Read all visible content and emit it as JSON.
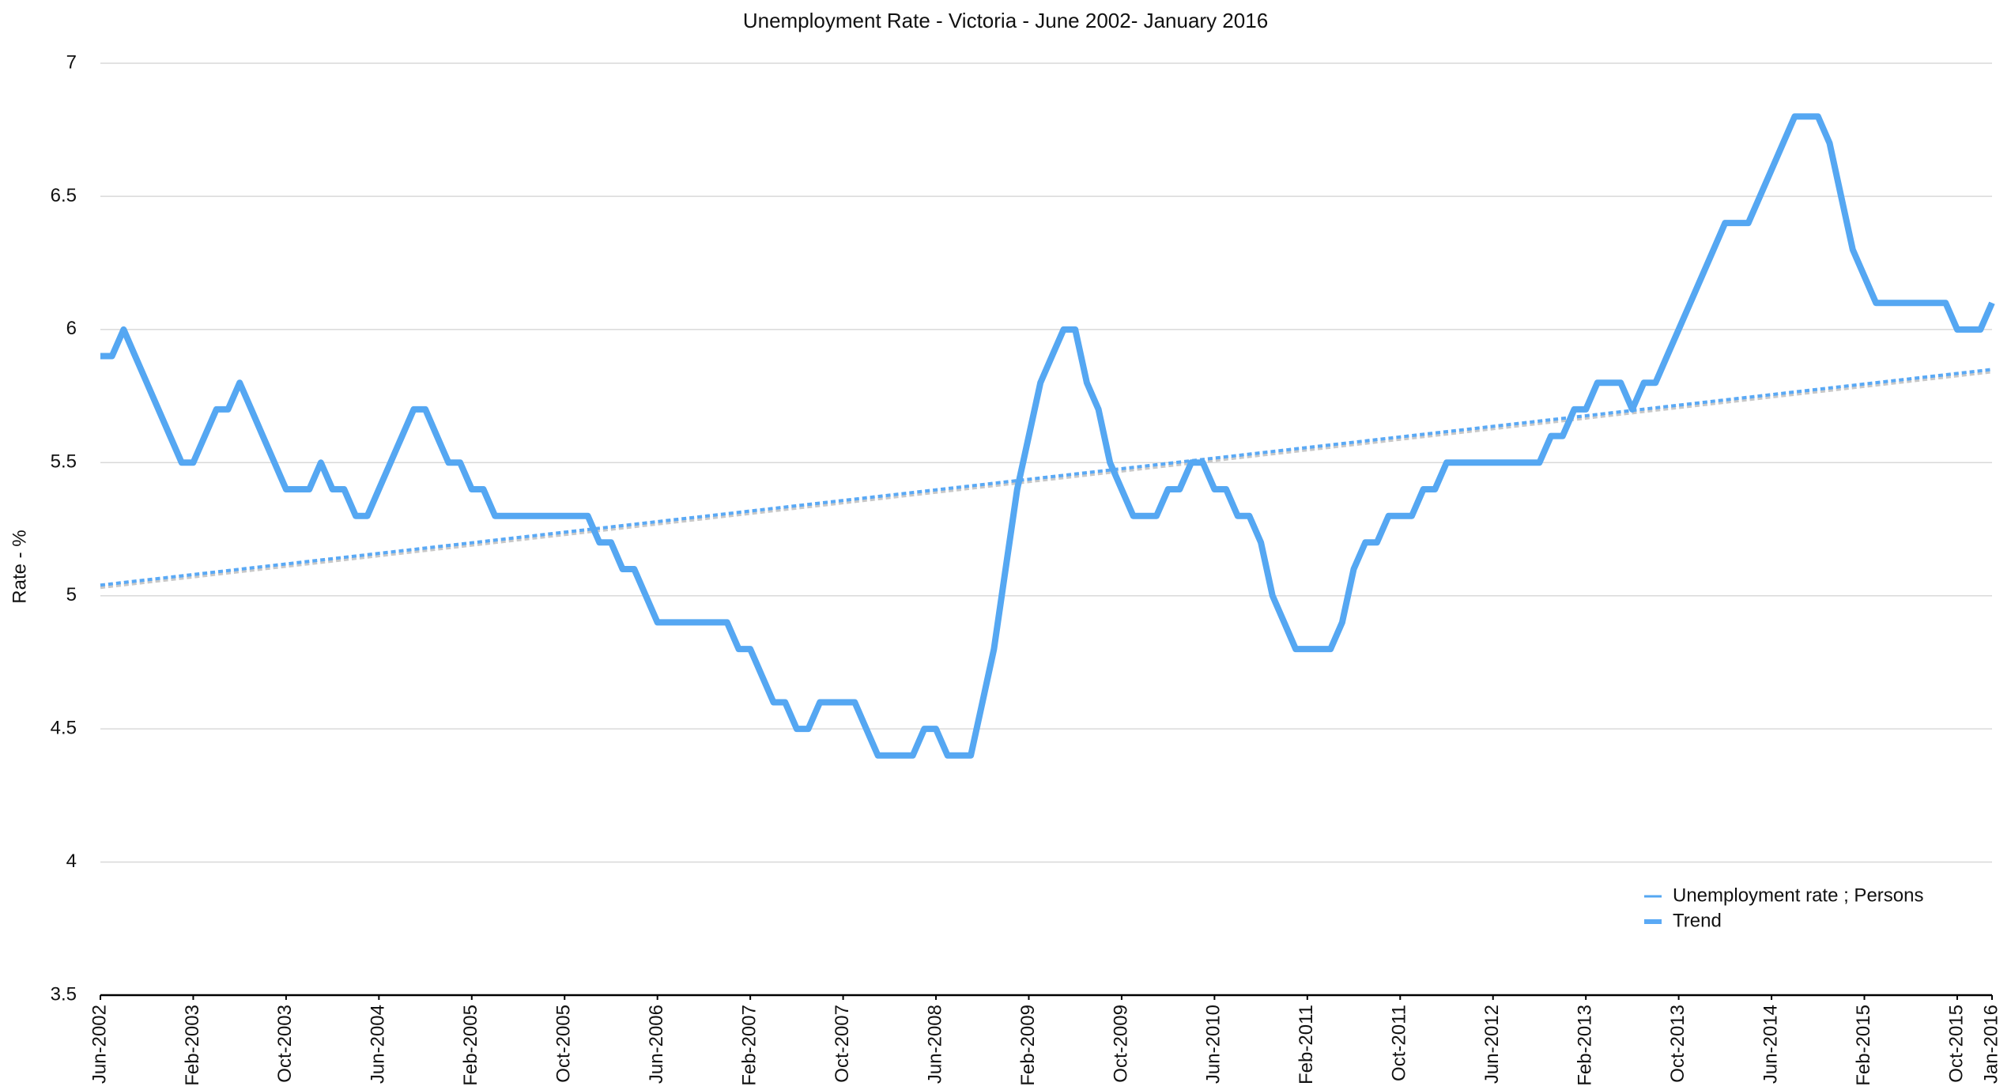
{
  "chart_data": {
    "type": "line",
    "title": "Unemployment Rate - Victoria - June 2002- January 2016",
    "y_label": "Rate - %",
    "categories": [
      "Jun-2002",
      null,
      null,
      null,
      null,
      null,
      null,
      null,
      "Feb-2003",
      null,
      null,
      null,
      null,
      null,
      null,
      null,
      "Oct-2003",
      null,
      null,
      null,
      null,
      null,
      null,
      null,
      "Jun-2004",
      null,
      null,
      null,
      null,
      null,
      null,
      null,
      "Feb-2005",
      null,
      null,
      null,
      null,
      null,
      null,
      null,
      "Oct-2005",
      null,
      null,
      null,
      null,
      null,
      null,
      null,
      "Jun-2006",
      null,
      null,
      null,
      null,
      null,
      null,
      null,
      "Feb-2007",
      null,
      null,
      null,
      null,
      null,
      null,
      null,
      "Oct-2007",
      null,
      null,
      null,
      null,
      null,
      null,
      null,
      "Jun-2008",
      null,
      null,
      null,
      null,
      null,
      null,
      null,
      "Feb-2009",
      null,
      null,
      null,
      null,
      null,
      null,
      null,
      "Oct-2009",
      null,
      null,
      null,
      null,
      null,
      null,
      null,
      "Jun-2010",
      null,
      null,
      null,
      null,
      null,
      null,
      null,
      "Feb-2011",
      null,
      null,
      null,
      null,
      null,
      null,
      null,
      "Oct-2011",
      null,
      null,
      null,
      null,
      null,
      null,
      null,
      "Jun-2012",
      null,
      null,
      null,
      null,
      null,
      null,
      null,
      "Feb-2013",
      null,
      null,
      null,
      null,
      null,
      null,
      null,
      "Oct-2013",
      null,
      null,
      null,
      null,
      null,
      null,
      null,
      "Jun-2014",
      null,
      null,
      null,
      null,
      null,
      null,
      null,
      "Feb-2015",
      null,
      null,
      null,
      null,
      null,
      null,
      null,
      "Oct-2015",
      null,
      null,
      "Jan-2016"
    ],
    "series": [
      {
        "name": "Unemployment rate ;  Persons",
        "color": "#55a7f2",
        "values": [
          5.9,
          5.9,
          6.0,
          5.9,
          5.8,
          5.7,
          5.6,
          5.5,
          5.5,
          5.6,
          5.7,
          5.7,
          5.8,
          5.7,
          5.6,
          5.5,
          5.4,
          5.4,
          5.4,
          5.5,
          5.4,
          5.4,
          5.3,
          5.3,
          5.4,
          5.5,
          5.6,
          5.7,
          5.7,
          5.6,
          5.5,
          5.5,
          5.4,
          5.4,
          5.3,
          5.3,
          5.3,
          5.3,
          5.3,
          5.3,
          5.3,
          5.3,
          5.3,
          5.2,
          5.2,
          5.1,
          5.1,
          5.0,
          4.9,
          4.9,
          4.9,
          4.9,
          4.9,
          4.9,
          4.9,
          4.8,
          4.8,
          4.7,
          4.6,
          4.6,
          4.5,
          4.5,
          4.6,
          4.6,
          4.6,
          4.6,
          4.5,
          4.4,
          4.4,
          4.4,
          4.4,
          4.5,
          4.5,
          4.4,
          4.4,
          4.4,
          4.6,
          4.8,
          5.1,
          5.4,
          5.6,
          5.8,
          5.9,
          6.0,
          6.0,
          5.8,
          5.7,
          5.5,
          5.4,
          5.3,
          5.3,
          5.3,
          5.4,
          5.4,
          5.5,
          5.5,
          5.4,
          5.4,
          5.3,
          5.3,
          5.2,
          5.0,
          4.9,
          4.8,
          4.8,
          4.8,
          4.8,
          4.9,
          5.1,
          5.2,
          5.2,
          5.3,
          5.3,
          5.3,
          5.4,
          5.4,
          5.5,
          5.5,
          5.5,
          5.5,
          5.5,
          5.5,
          5.5,
          5.5,
          5.5,
          5.6,
          5.6,
          5.7,
          5.7,
          5.8,
          5.8,
          5.8,
          5.7,
          5.8,
          5.8,
          5.9,
          6.0,
          6.1,
          6.2,
          6.3,
          6.4,
          6.4,
          6.4,
          6.5,
          6.6,
          6.7,
          6.8,
          6.8,
          6.8,
          6.7,
          6.5,
          6.3,
          6.2,
          6.1,
          6.1,
          6.1,
          6.1,
          6.1,
          6.1,
          6.1,
          6.0,
          6.0,
          6.0,
          6.1
        ]
      }
    ],
    "trend": {
      "name": "Trend",
      "color": "#5aa9f5",
      "start": 5.04,
      "end": 5.85
    },
    "ylim": [
      3.5,
      7
    ],
    "yticks": [
      3.5,
      4,
      4.5,
      5,
      5.5,
      6,
      6.5,
      7
    ],
    "grid": true,
    "legend": "lower right"
  }
}
